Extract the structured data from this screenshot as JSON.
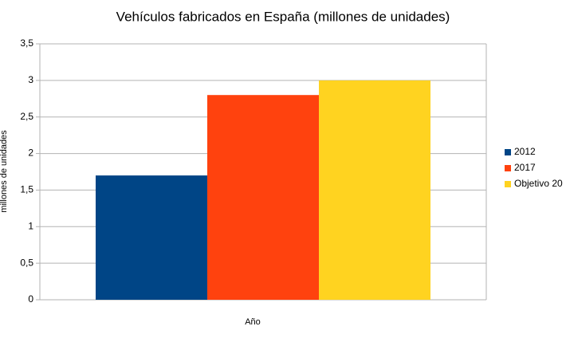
{
  "chart_data": {
    "type": "bar",
    "title": "Vehículos fabricados en España (millones de unidades)",
    "x_label": "Año",
    "y_label": "millones de unidades",
    "series": [
      {
        "name": "2012",
        "color": "#004586",
        "values": [
          1.7
        ]
      },
      {
        "name": "2017",
        "color": "#ff420e",
        "values": [
          2.8
        ]
      },
      {
        "name": "Objetivo 20",
        "color": "#ffd320",
        "values": [
          3
        ]
      }
    ],
    "ylim": [
      0,
      3.5
    ],
    "yticks": [
      0,
      {
        "value": 0.5,
        "label": "0,5"
      },
      1,
      {
        "value": 1.5,
        "label": "1,5"
      },
      2,
      {
        "value": 2.5,
        "label": "2,5"
      },
      3,
      {
        "value": 3.5,
        "label": "3,5"
      }
    ],
    "grid": true,
    "legend": "right"
  }
}
